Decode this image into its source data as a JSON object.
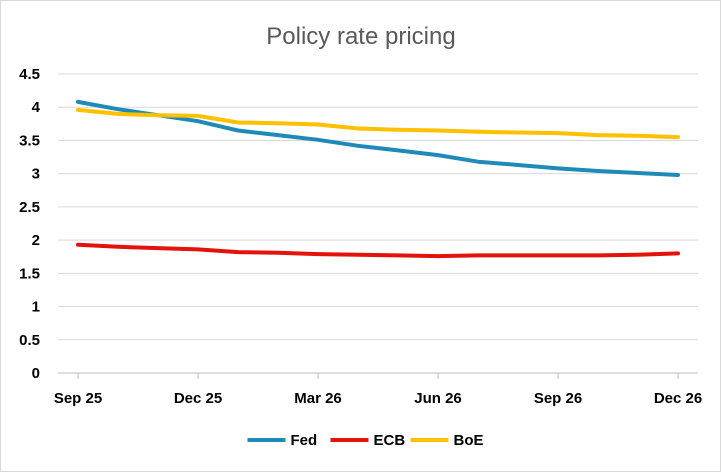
{
  "chart_data": {
    "type": "line",
    "title": "Policy rate pricing",
    "xlabel": "",
    "ylabel": "",
    "x_ticks": [
      "Sep 25",
      "Dec 25",
      "Mar 26",
      "Jun 26",
      "Sep 26",
      "Dec 26"
    ],
    "x": [
      "Sep 25",
      "Oct 25",
      "Nov 25",
      "Dec 25",
      "Jan 26",
      "Feb 26",
      "Mar 26",
      "Apr 26",
      "May 26",
      "Jun 26",
      "Jul 26",
      "Aug 26",
      "Sep 26",
      "Oct 26",
      "Nov 26",
      "Dec 26"
    ],
    "ylim": [
      0,
      4.5
    ],
    "y_ticks": [
      "0",
      "0.5",
      "1",
      "1.5",
      "2",
      "2.5",
      "3",
      "3.5",
      "4",
      "4.5"
    ],
    "grid": "horizontal",
    "legend_position": "bottom",
    "series": [
      {
        "name": "Fed",
        "color": "#1f8ab8",
        "values": [
          4.08,
          3.97,
          3.88,
          3.79,
          3.65,
          3.58,
          3.51,
          3.42,
          3.35,
          3.28,
          3.18,
          3.13,
          3.08,
          3.04,
          3.01,
          2.98
        ]
      },
      {
        "name": "ECB",
        "color": "#e3120b",
        "values": [
          1.93,
          1.9,
          1.88,
          1.86,
          1.82,
          1.81,
          1.79,
          1.78,
          1.77,
          1.76,
          1.77,
          1.77,
          1.77,
          1.77,
          1.78,
          1.8
        ]
      },
      {
        "name": "BoE",
        "color": "#ffc000",
        "values": [
          3.96,
          3.9,
          3.88,
          3.87,
          3.77,
          3.76,
          3.74,
          3.68,
          3.66,
          3.65,
          3.63,
          3.62,
          3.61,
          3.58,
          3.57,
          3.55
        ]
      }
    ]
  }
}
